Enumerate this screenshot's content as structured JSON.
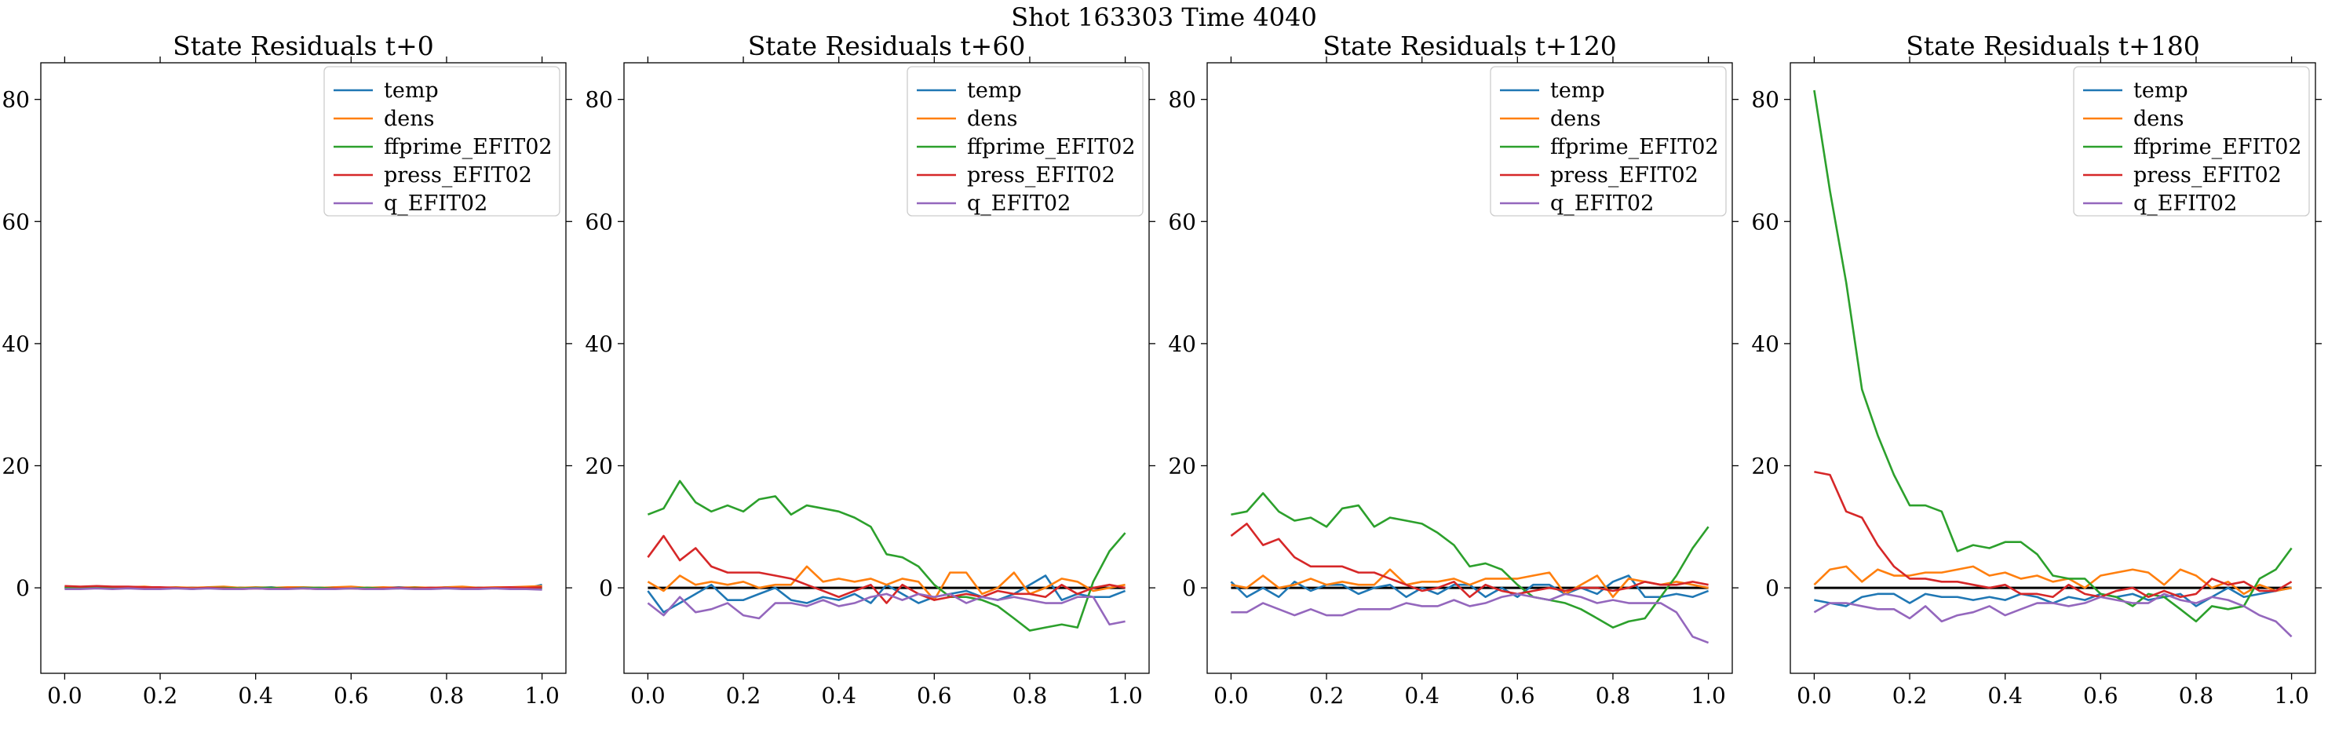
{
  "figure": {
    "title": "Shot 163303   Time 4040"
  },
  "chart_data": [
    {
      "type": "line",
      "title": "State Residuals t+0",
      "xlim": [
        -0.05,
        1.05
      ],
      "ylim": [
        -14,
        86
      ],
      "xticks": [
        0.0,
        0.2,
        0.4,
        0.6,
        0.8,
        1.0
      ],
      "xtick_labels": [
        "0.0",
        "0.2",
        "0.4",
        "0.6",
        "0.8",
        "1.0"
      ],
      "yticks": [
        0,
        20,
        40,
        60,
        80
      ],
      "ytick_labels": [
        "0",
        "20",
        "40",
        "60",
        "80"
      ],
      "legend_position": "top-right",
      "zero_line": true,
      "x": [
        0.0,
        0.033,
        0.067,
        0.1,
        0.133,
        0.167,
        0.2,
        0.233,
        0.267,
        0.3,
        0.333,
        0.367,
        0.4,
        0.433,
        0.467,
        0.5,
        0.533,
        0.567,
        0.6,
        0.633,
        0.667,
        0.7,
        0.733,
        0.767,
        0.8,
        0.833,
        0.867,
        0.9,
        0.933,
        0.967,
        1.0
      ],
      "series": [
        {
          "name": "temp",
          "color": "#1f77b4",
          "values": [
            0.1,
            0.0,
            0.1,
            -0.1,
            0.0,
            0.1,
            -0.1,
            0.0,
            -0.2,
            0.0,
            0.1,
            -0.1,
            0.0,
            0.1,
            -0.1,
            0.0,
            -0.1,
            0.1,
            0.0,
            -0.1,
            0.0,
            0.1,
            0.0,
            -0.1,
            0.1,
            0.0,
            -0.1,
            0.0,
            0.1,
            -0.1,
            0.5
          ]
        },
        {
          "name": "dens",
          "color": "#ff7f0e",
          "values": [
            0.2,
            0.1,
            0.2,
            0.0,
            0.1,
            0.2,
            0.0,
            0.1,
            0.0,
            0.1,
            0.2,
            0.0,
            0.1,
            0.0,
            0.1,
            0.1,
            0.0,
            0.1,
            0.2,
            0.0,
            0.1,
            0.0,
            0.1,
            0.0,
            0.1,
            0.2,
            0.0,
            0.1,
            0.1,
            0.2,
            0.3
          ]
        },
        {
          "name": "ffprime_EFIT02",
          "color": "#2ca02c",
          "values": [
            0.0,
            -0.1,
            0.0,
            0.1,
            0.0,
            -0.1,
            0.0,
            0.0,
            -0.1,
            0.0,
            0.0,
            -0.1,
            0.0,
            0.0,
            -0.1,
            0.0,
            0.0,
            -0.1,
            -0.1,
            0.0,
            -0.1,
            -0.1,
            0.0,
            -0.1,
            0.0,
            -0.1,
            0.0,
            -0.1,
            0.0,
            -0.1,
            -0.2
          ]
        },
        {
          "name": "press_EFIT02",
          "color": "#d62728",
          "values": [
            0.3,
            0.2,
            0.3,
            0.2,
            0.2,
            0.1,
            0.1,
            0.0,
            -0.1,
            0.0,
            -0.1,
            -0.2,
            -0.1,
            -0.2,
            -0.1,
            -0.1,
            -0.2,
            -0.1,
            -0.1,
            -0.2,
            -0.1,
            0.0,
            -0.1,
            0.0,
            0.0,
            -0.1,
            0.0,
            0.0,
            0.1,
            0.0,
            0.1
          ]
        },
        {
          "name": "q_EFIT02",
          "color": "#9467bd",
          "values": [
            -0.2,
            -0.2,
            -0.1,
            -0.2,
            -0.1,
            -0.2,
            -0.2,
            -0.1,
            -0.2,
            -0.1,
            -0.2,
            -0.2,
            -0.1,
            -0.2,
            -0.2,
            -0.1,
            -0.2,
            -0.2,
            -0.1,
            -0.2,
            -0.2,
            -0.1,
            -0.2,
            -0.2,
            -0.1,
            -0.2,
            -0.2,
            -0.1,
            -0.2,
            -0.2,
            -0.3
          ]
        }
      ]
    },
    {
      "type": "line",
      "title": "State Residuals t+60",
      "xlim": [
        -0.05,
        1.05
      ],
      "ylim": [
        -14,
        86
      ],
      "xticks": [
        0.0,
        0.2,
        0.4,
        0.6,
        0.8,
        1.0
      ],
      "xtick_labels": [
        "0.0",
        "0.2",
        "0.4",
        "0.6",
        "0.8",
        "1.0"
      ],
      "yticks": [
        0,
        20,
        40,
        60,
        80
      ],
      "ytick_labels": [
        "0",
        "20",
        "40",
        "60",
        "80"
      ],
      "legend_position": "top-right",
      "zero_line": true,
      "x": [
        0.0,
        0.033,
        0.067,
        0.1,
        0.133,
        0.167,
        0.2,
        0.233,
        0.267,
        0.3,
        0.333,
        0.367,
        0.4,
        0.433,
        0.467,
        0.5,
        0.533,
        0.567,
        0.6,
        0.633,
        0.667,
        0.7,
        0.733,
        0.767,
        0.8,
        0.833,
        0.867,
        0.9,
        0.933,
        0.967,
        1.0
      ],
      "series": [
        {
          "name": "temp",
          "color": "#1f77b4",
          "values": [
            -0.5,
            -4.0,
            -2.5,
            -1.0,
            0.5,
            -2.0,
            -2.0,
            -1.0,
            0.0,
            -2.0,
            -2.5,
            -1.5,
            -2.0,
            -1.0,
            -2.5,
            0.5,
            -1.0,
            -2.5,
            -1.5,
            -1.0,
            -0.5,
            -1.5,
            -2.0,
            -1.0,
            0.5,
            2.0,
            -2.0,
            -1.0,
            -1.5,
            -1.5,
            -0.5
          ]
        },
        {
          "name": "dens",
          "color": "#ff7f0e",
          "values": [
            1.0,
            -0.5,
            2.0,
            0.5,
            1.0,
            0.5,
            1.0,
            0.0,
            0.5,
            0.5,
            3.5,
            1.0,
            1.5,
            1.0,
            1.5,
            0.5,
            1.5,
            1.0,
            -2.0,
            2.5,
            2.5,
            -1.0,
            0.0,
            2.5,
            -1.0,
            0.0,
            1.5,
            1.0,
            -0.5,
            0.0,
            0.5
          ]
        },
        {
          "name": "ffprime_EFIT02",
          "color": "#2ca02c",
          "values": [
            12.0,
            13.0,
            17.5,
            14.0,
            12.5,
            13.5,
            12.5,
            14.5,
            15.0,
            12.0,
            13.5,
            13.0,
            12.5,
            11.5,
            10.0,
            5.5,
            5.0,
            3.5,
            0.5,
            -1.5,
            -1.5,
            -2.0,
            -3.0,
            -5.0,
            -7.0,
            -6.5,
            -6.0,
            -6.5,
            1.0,
            6.0,
            9.0
          ]
        },
        {
          "name": "press_EFIT02",
          "color": "#d62728",
          "values": [
            5.0,
            8.5,
            4.5,
            6.5,
            3.5,
            2.5,
            2.5,
            2.5,
            2.0,
            1.5,
            0.5,
            -0.5,
            -1.5,
            -0.5,
            0.5,
            -2.5,
            0.5,
            -1.0,
            -2.0,
            -1.5,
            -1.0,
            -1.5,
            -0.5,
            -1.0,
            -1.0,
            -1.5,
            0.5,
            -1.0,
            0.0,
            0.5,
            0.0
          ]
        },
        {
          "name": "q_EFIT02",
          "color": "#9467bd",
          "values": [
            -2.5,
            -4.5,
            -1.5,
            -4.0,
            -3.5,
            -2.5,
            -4.5,
            -5.0,
            -2.5,
            -2.5,
            -3.0,
            -2.0,
            -3.0,
            -2.5,
            -1.5,
            -1.0,
            -2.0,
            -1.0,
            -1.5,
            -1.0,
            -2.5,
            -1.5,
            -2.0,
            -1.5,
            -2.0,
            -2.5,
            -2.5,
            -1.5,
            -1.5,
            -6.0,
            -5.5
          ]
        }
      ]
    },
    {
      "type": "line",
      "title": "State Residuals t+120",
      "xlim": [
        -0.05,
        1.05
      ],
      "ylim": [
        -14,
        86
      ],
      "xticks": [
        0.0,
        0.2,
        0.4,
        0.6,
        0.8,
        1.0
      ],
      "xtick_labels": [
        "0.0",
        "0.2",
        "0.4",
        "0.6",
        "0.8",
        "1.0"
      ],
      "yticks": [
        0,
        20,
        40,
        60,
        80
      ],
      "ytick_labels": [
        "0",
        "20",
        "40",
        "60",
        "80"
      ],
      "legend_position": "top-right",
      "zero_line": true,
      "x": [
        0.0,
        0.033,
        0.067,
        0.1,
        0.133,
        0.167,
        0.2,
        0.233,
        0.267,
        0.3,
        0.333,
        0.367,
        0.4,
        0.433,
        0.467,
        0.5,
        0.533,
        0.567,
        0.6,
        0.633,
        0.667,
        0.7,
        0.733,
        0.767,
        0.8,
        0.833,
        0.867,
        0.9,
        0.933,
        0.967,
        1.0
      ],
      "series": [
        {
          "name": "temp",
          "color": "#1f77b4",
          "values": [
            1.0,
            -1.5,
            0.0,
            -1.5,
            1.0,
            -0.5,
            0.5,
            0.5,
            -1.0,
            0.0,
            0.5,
            -1.5,
            0.0,
            -1.0,
            0.5,
            0.5,
            -1.5,
            0.0,
            -1.5,
            0.5,
            0.5,
            -1.0,
            0.0,
            -1.0,
            1.0,
            2.0,
            -1.5,
            -1.5,
            -1.0,
            -1.5,
            -0.5
          ]
        },
        {
          "name": "dens",
          "color": "#ff7f0e",
          "values": [
            0.5,
            0.0,
            2.0,
            0.0,
            0.5,
            1.5,
            0.5,
            1.0,
            0.5,
            0.5,
            3.0,
            0.5,
            1.0,
            1.0,
            1.5,
            0.5,
            1.5,
            1.5,
            1.5,
            2.0,
            2.5,
            -1.0,
            0.5,
            2.0,
            -1.5,
            1.5,
            1.0,
            0.5,
            1.0,
            0.5,
            0.0
          ]
        },
        {
          "name": "ffprime_EFIT02",
          "color": "#2ca02c",
          "values": [
            12.0,
            12.5,
            15.5,
            12.5,
            11.0,
            11.5,
            10.0,
            13.0,
            13.5,
            10.0,
            11.5,
            11.0,
            10.5,
            9.0,
            7.0,
            3.5,
            4.0,
            3.0,
            0.5,
            -1.5,
            -2.0,
            -2.5,
            -3.5,
            -5.0,
            -6.5,
            -5.5,
            -5.0,
            -1.5,
            2.0,
            6.5,
            10.0
          ]
        },
        {
          "name": "press_EFIT02",
          "color": "#d62728",
          "values": [
            8.5,
            10.5,
            7.0,
            8.0,
            5.0,
            3.5,
            3.5,
            3.5,
            2.5,
            2.5,
            1.5,
            0.5,
            -0.5,
            0.0,
            1.0,
            -1.5,
            0.5,
            -0.5,
            -1.0,
            -0.5,
            0.0,
            -0.5,
            0.0,
            0.0,
            -0.5,
            0.0,
            1.0,
            0.5,
            0.5,
            1.0,
            0.5
          ]
        },
        {
          "name": "q_EFIT02",
          "color": "#9467bd",
          "values": [
            -4.0,
            -4.0,
            -2.5,
            -3.5,
            -4.5,
            -3.5,
            -4.5,
            -4.5,
            -3.5,
            -3.5,
            -3.5,
            -2.5,
            -3.0,
            -3.0,
            -2.0,
            -3.0,
            -2.5,
            -1.5,
            -1.0,
            -1.5,
            -2.0,
            -1.0,
            -1.5,
            -2.5,
            -2.0,
            -2.5,
            -2.5,
            -2.5,
            -4.0,
            -8.0,
            -9.0
          ]
        }
      ]
    },
    {
      "type": "line",
      "title": "State Residuals t+180",
      "xlim": [
        -0.05,
        1.05
      ],
      "ylim": [
        -14,
        86
      ],
      "xticks": [
        0.0,
        0.2,
        0.4,
        0.6,
        0.8,
        1.0
      ],
      "xtick_labels": [
        "0.0",
        "0.2",
        "0.4",
        "0.6",
        "0.8",
        "1.0"
      ],
      "yticks": [
        0,
        20,
        40,
        60,
        80
      ],
      "ytick_labels": [
        "0",
        "20",
        "40",
        "60",
        "80"
      ],
      "legend_position": "top-right",
      "zero_line": true,
      "x": [
        0.0,
        0.033,
        0.067,
        0.1,
        0.133,
        0.167,
        0.2,
        0.233,
        0.267,
        0.3,
        0.333,
        0.367,
        0.4,
        0.433,
        0.467,
        0.5,
        0.533,
        0.567,
        0.6,
        0.633,
        0.667,
        0.7,
        0.733,
        0.767,
        0.8,
        0.833,
        0.867,
        0.9,
        0.933,
        0.967,
        1.0
      ],
      "series": [
        {
          "name": "temp",
          "color": "#1f77b4",
          "values": [
            -2.0,
            -2.5,
            -3.0,
            -1.5,
            -1.0,
            -1.0,
            -2.5,
            -1.0,
            -1.5,
            -1.5,
            -2.0,
            -1.5,
            -2.0,
            -1.0,
            -1.5,
            -2.5,
            -1.5,
            -2.0,
            -1.0,
            -1.5,
            -1.0,
            -2.0,
            -1.5,
            -1.0,
            -3.0,
            -1.5,
            0.0,
            -1.5,
            -1.0,
            -0.5,
            0.0
          ]
        },
        {
          "name": "dens",
          "color": "#ff7f0e",
          "values": [
            0.5,
            3.0,
            3.5,
            1.0,
            3.0,
            2.0,
            2.0,
            2.5,
            2.5,
            3.0,
            3.5,
            2.0,
            2.5,
            1.5,
            2.0,
            1.0,
            1.5,
            0.0,
            2.0,
            2.5,
            3.0,
            2.5,
            0.5,
            3.0,
            2.0,
            0.0,
            1.0,
            -1.0,
            0.5,
            -0.5,
            0.0
          ]
        },
        {
          "name": "ffprime_EFIT02",
          "color": "#2ca02c",
          "values": [
            81.5,
            65.0,
            50.0,
            32.5,
            25.0,
            18.5,
            13.5,
            13.5,
            12.5,
            6.0,
            7.0,
            6.5,
            7.5,
            7.5,
            5.5,
            2.0,
            1.5,
            1.5,
            -1.0,
            -1.5,
            -3.0,
            -1.0,
            -1.5,
            -3.5,
            -5.5,
            -3.0,
            -3.5,
            -3.0,
            1.5,
            3.0,
            6.5
          ]
        },
        {
          "name": "press_EFIT02",
          "color": "#d62728",
          "values": [
            19.0,
            18.5,
            12.5,
            11.5,
            7.0,
            3.5,
            1.5,
            1.5,
            1.0,
            1.0,
            0.5,
            0.0,
            0.5,
            -1.0,
            -1.0,
            -1.5,
            0.5,
            -1.0,
            -1.5,
            -0.5,
            0.0,
            -1.5,
            -0.5,
            -1.5,
            -1.0,
            1.5,
            0.5,
            1.0,
            -0.5,
            -0.5,
            1.0
          ]
        },
        {
          "name": "q_EFIT02",
          "color": "#9467bd",
          "values": [
            -4.0,
            -2.5,
            -2.5,
            -3.0,
            -3.5,
            -3.5,
            -5.0,
            -3.0,
            -5.5,
            -4.5,
            -4.0,
            -3.0,
            -4.5,
            -3.5,
            -2.5,
            -2.5,
            -3.0,
            -2.5,
            -1.5,
            -2.0,
            -2.5,
            -2.5,
            -1.0,
            -2.0,
            -2.5,
            -1.5,
            -2.0,
            -3.0,
            -4.5,
            -5.5,
            -8.0
          ]
        }
      ]
    }
  ]
}
